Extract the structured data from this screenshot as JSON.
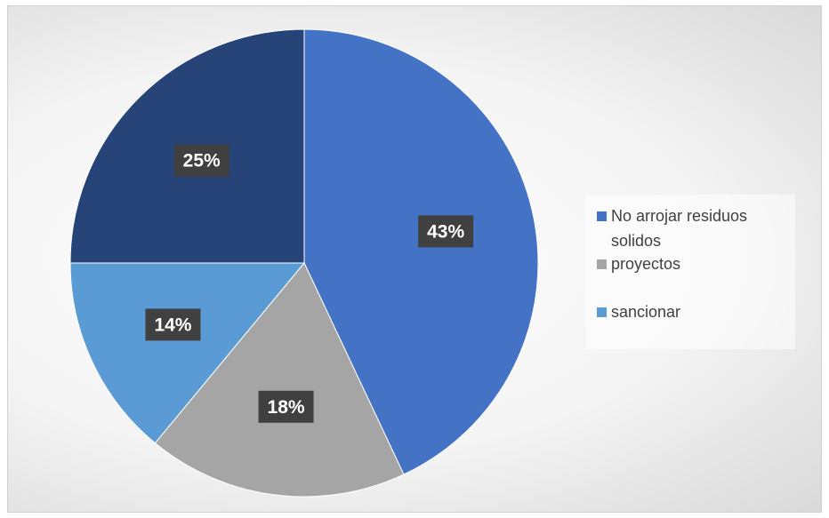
{
  "chart_data": {
    "type": "pie",
    "title": "",
    "slices": [
      {
        "label": "No arrojar residuos solidos",
        "value": 43,
        "display": "43%",
        "color": "#4472C4"
      },
      {
        "label": "proyectos",
        "value": 18,
        "display": "18%",
        "color": "#A5A5A5"
      },
      {
        "label": "sancionar",
        "value": 14,
        "display": "14%",
        "color": "#5B9BD5"
      },
      {
        "label": "",
        "value": 25,
        "display": "25%",
        "color": "#264478"
      }
    ],
    "legend_position": "right",
    "legend_entries": [
      "No arrojar residuos solidos",
      "proyectos",
      "sancionar"
    ],
    "start_angle_deg": 0,
    "direction": "clockwise"
  }
}
